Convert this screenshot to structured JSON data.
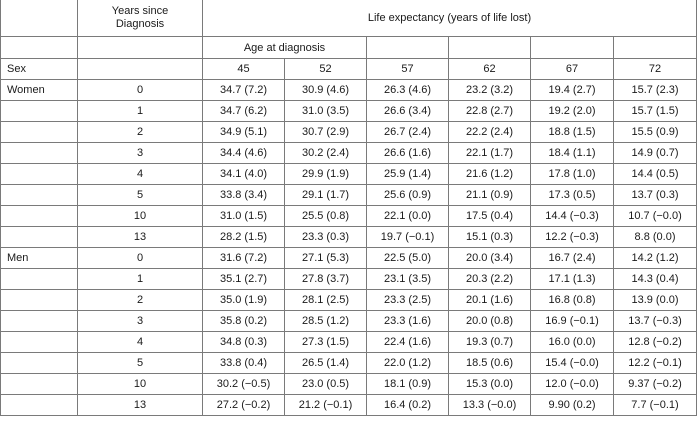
{
  "header": {
    "years_since_diagnosis_line1": "Years since",
    "years_since_diagnosis_line2": "Diagnosis",
    "life_expectancy": "Life expectancy (years of life lost)",
    "age_at_diagnosis": "Age at diagnosis",
    "sex": "Sex",
    "ages": [
      "45",
      "52",
      "57",
      "62",
      "67",
      "72"
    ]
  },
  "groups": [
    {
      "sex": "Women",
      "rows": [
        {
          "years": "0",
          "values": [
            "34.7 (7.2)",
            "30.9 (4.6)",
            "26.3 (4.6)",
            "23.2 (3.2)",
            "19.4 (2.7)",
            "15.7 (2.3)"
          ]
        },
        {
          "years": "1",
          "values": [
            "34.7 (6.2)",
            "31.0 (3.5)",
            "26.6 (3.4)",
            "22.8 (2.7)",
            "19.2 (2.0)",
            "15.7 (1.5)"
          ]
        },
        {
          "years": "2",
          "values": [
            "34.9 (5.1)",
            "30.7 (2.9)",
            "26.7 (2.4)",
            "22.2 (2.4)",
            "18.8 (1.5)",
            "15.5 (0.9)"
          ]
        },
        {
          "years": "3",
          "values": [
            "34.4 (4.6)",
            "30.2 (2.4)",
            "26.6 (1.6)",
            "22.1 (1.7)",
            "18.4 (1.1)",
            "14.9 (0.7)"
          ]
        },
        {
          "years": "4",
          "values": [
            "34.1 (4.0)",
            "29.9 (1.9)",
            "25.9 (1.4)",
            "21.6 (1.2)",
            "17.8 (1.0)",
            "14.4 (0.5)"
          ]
        },
        {
          "years": "5",
          "values": [
            "33.8 (3.4)",
            "29.1 (1.7)",
            "25.6 (0.9)",
            "21.1 (0.9)",
            "17.3 (0.5)",
            "13.7 (0.3)"
          ]
        },
        {
          "years": "10",
          "values": [
            "31.0 (1.5)",
            "25.5 (0.8)",
            "22.1 (0.0)",
            "17.5 (0.4)",
            "14.4 (−0.3)",
            "10.7 (−0.0)"
          ]
        },
        {
          "years": "13",
          "values": [
            "28.2 (1.5)",
            "23.3 (0.3)",
            "19.7 (−0.1)",
            "15.1 (0.3)",
            "12.2 (−0.3)",
            "8.8 (0.0)"
          ]
        }
      ]
    },
    {
      "sex": "Men",
      "rows": [
        {
          "years": "0",
          "values": [
            "31.6 (7.2)",
            "27.1 (5.3)",
            "22.5 (5.0)",
            "20.0 (3.4)",
            "16.7 (2.4)",
            "14.2 (1.2)"
          ]
        },
        {
          "years": "1",
          "values": [
            "35.1 (2.7)",
            "27.8 (3.7)",
            "23.1 (3.5)",
            "20.3 (2.2)",
            "17.1 (1.3)",
            "14.3 (0.4)"
          ]
        },
        {
          "years": "2",
          "values": [
            "35.0 (1.9)",
            "28.1 (2.5)",
            "23.3 (2.5)",
            "20.1 (1.6)",
            "16.8 (0.8)",
            "13.9 (0.0)"
          ]
        },
        {
          "years": "3",
          "values": [
            "35.8 (0.2)",
            "28.5 (1.2)",
            "23.3 (1.6)",
            "20.0 (0.8)",
            "16.9 (−0.1)",
            "13.7 (−0.3)"
          ]
        },
        {
          "years": "4",
          "values": [
            "34.8 (0.3)",
            "27.3 (1.5)",
            "22.4 (1.6)",
            "19.3 (0.7)",
            "16.0 (0.0)",
            "12.8 (−0.2)"
          ]
        },
        {
          "years": "5",
          "values": [
            "33.8 (0.4)",
            "26.5 (1.4)",
            "22.0 (1.2)",
            "18.5 (0.6)",
            "15.4 (−0.0)",
            "12.2 (−0.1)"
          ]
        },
        {
          "years": "10",
          "values": [
            "30.2 (−0.5)",
            "23.0 (0.5)",
            "18.1 (0.9)",
            "15.3 (0.0)",
            "12.0 (−0.0)",
            "9.37 (−0.2)"
          ]
        },
        {
          "years": "13",
          "values": [
            "27.2 (−0.2)",
            "21.2 (−0.1)",
            "16.4 (0.2)",
            "13.3 (−0.0)",
            "9.90 (0.2)",
            "7.7 (−0.1)"
          ]
        }
      ]
    }
  ]
}
